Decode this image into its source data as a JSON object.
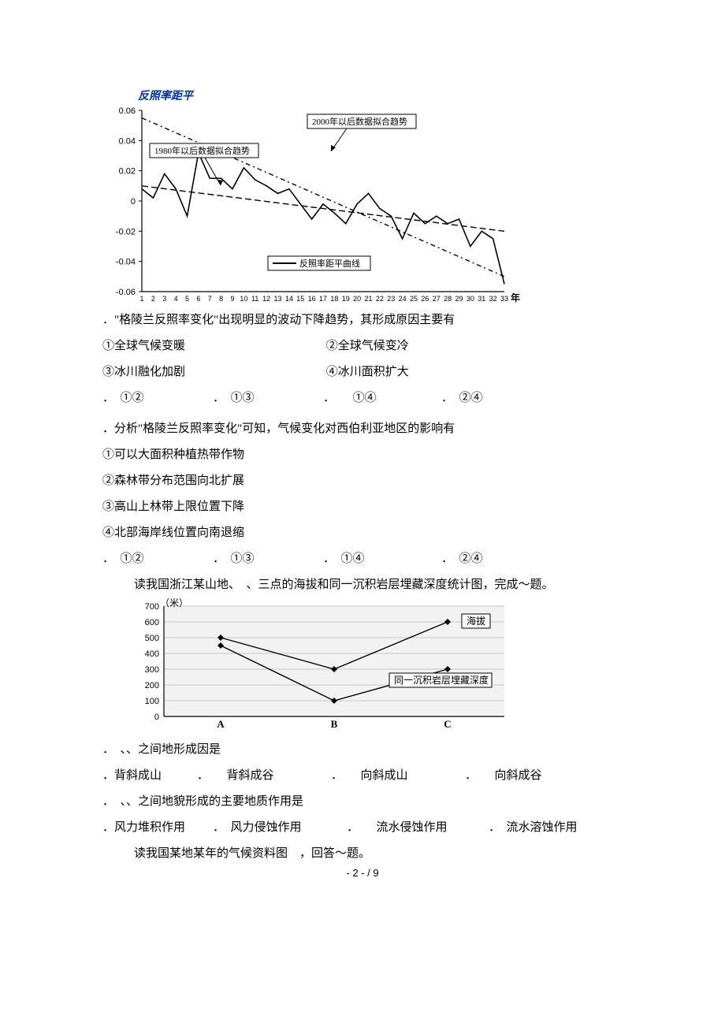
{
  "chart1": {
    "title": "反照率距平",
    "title_color": "#0033aa",
    "title_fontsize": 14,
    "title_fontweight": "bold",
    "x_years": [
      1,
      2,
      3,
      4,
      5,
      6,
      7,
      8,
      9,
      10,
      11,
      12,
      13,
      14,
      15,
      16,
      17,
      18,
      19,
      20,
      21,
      22,
      23,
      24,
      25,
      26,
      27,
      28,
      29,
      30,
      31,
      32,
      33
    ],
    "x_axis_title": "年",
    "ylim": [
      -0.06,
      0.06
    ],
    "ytick_step": 0.02,
    "yticks": [
      "0.06",
      "0.04",
      "0.02",
      "0",
      "-0.02",
      "-0.04",
      "-0.06"
    ],
    "series_values": [
      0.008,
      0.002,
      0.018,
      0.008,
      -0.01,
      0.032,
      0.015,
      0.015,
      0.008,
      0.022,
      0.014,
      0.01,
      0.005,
      0.008,
      -0.002,
      -0.012,
      -0.002,
      -0.008,
      -0.015,
      -0.002,
      0.005,
      -0.005,
      -0.01,
      -0.025,
      -0.008,
      -0.015,
      -0.01,
      -0.015,
      -0.012,
      -0.03,
      -0.02,
      -0.025,
      -0.055
    ],
    "series_label": "反照率距平曲线",
    "series_color": "#000000",
    "trend1_label": "1980年以后数据拟合趋势",
    "trend1_dash": "8 4",
    "trend1_color": "#000000",
    "trend1_start_y": 0.01,
    "trend1_end_y": -0.02,
    "trend2_label": "2000年以后数据拟合趋势",
    "trend2_dash": "6 4 2 4",
    "trend2_color": "#000000",
    "trend2_start_y": 0.055,
    "trend2_end_y": -0.05,
    "background_color": "#ffffff",
    "axis_color": "#000000",
    "label_box_border": "#000000"
  },
  "q3": {
    "stem": "．\"格陵兰反照率变化\"出现明显的波动下降趋势，其形成原因主要有",
    "opt1": "①全球气候变暖",
    "opt2": "②全球气候变冷",
    "opt3": "③冰川融化加剧",
    "opt4": "④冰川面积扩大",
    "choiceA": "．　①②",
    "choiceB": "．　①③",
    "choiceC": "．　　①④",
    "choiceD": "．　②④"
  },
  "q4": {
    "stem": "．分析\"格陵兰反照率变化\"可知，气候变化对西伯利亚地区的影响有",
    "opt1": "①可以大面积种植热带作物",
    "opt2": "②森林带分布范围向北扩展",
    "opt3": "③高山上林带上限位置下降",
    "opt4": "④北部海岸线位置向南退缩",
    "choiceA": "．　①②",
    "choiceB": "．　①③",
    "choiceC": "．　①④",
    "choiceD": "．　②④"
  },
  "intro2": "读我国浙江某山地、　、三点的海拔和同一沉积岩层埋藏深度统计图，完成～题。",
  "chart2": {
    "y_axis_title": "（米）",
    "yticks": [
      "700",
      "600",
      "500",
      "400",
      "300",
      "200",
      "100",
      "0"
    ],
    "ylim": [
      0,
      700
    ],
    "categories": [
      "A",
      "B",
      "C"
    ],
    "series1_label": "海拔",
    "series1_values": [
      500,
      300,
      600
    ],
    "series1_marker": "diamond",
    "series1_color": "#000000",
    "series2_label": "同一沉积岩层埋藏深度",
    "series2_values": [
      450,
      100,
      300
    ],
    "series2_marker": "diamond",
    "series2_color": "#000000",
    "background_color": "#f2f2f2",
    "grid_color": "#c8c8c8",
    "axis_color": "#000000",
    "label_box_fill": "#ffffff"
  },
  "q5": {
    "stem": "．　、、之间地形成因是",
    "choiceA": "．背斜成山",
    "choiceB": "．　　背斜成谷",
    "choiceC": "．　　向斜成山",
    "choiceD": "．　　向斜成谷"
  },
  "q6": {
    "stem": "．　、、之间地貌形成的主要地质作用是",
    "choiceA": "．风力堆积作用",
    "choiceB": "．　风力侵蚀作用",
    "choiceC": "．　　流水侵蚀作用",
    "choiceD": "．　流水溶蚀作用"
  },
  "intro3": "读我国某地某年的气候资料图　，回答～题。",
  "footer": "- 2 - / 9"
}
